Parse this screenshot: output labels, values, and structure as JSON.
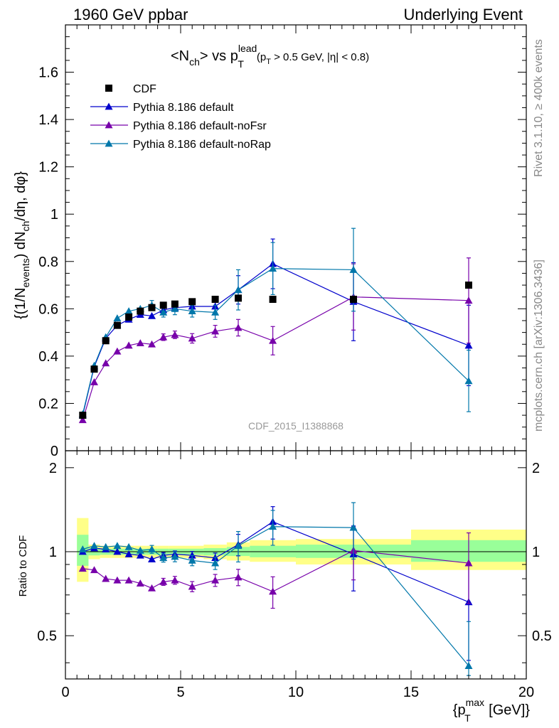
{
  "header": {
    "left": "1960 GeV ppbar",
    "right": "Underlying Event"
  },
  "side": {
    "rivet": "Rivet 3.1.10, ≥ 400k events",
    "mcplots": "mcplots.cern.ch [arXiv:1306.3436]"
  },
  "watermark": "CDF_2015_I1388868",
  "title": {
    "main": "<N",
    "main_sub": "ch",
    "mid": "> vs p",
    "mid_sup": "lead",
    "mid_sub": "T",
    "cut": "(p",
    "cut_sub": "T",
    "cut_rest": " > 0.5 GeV, |η| < 0.8)"
  },
  "axes": {
    "ylabel_main": "{(1/N",
    "ylabel_sub1": "events",
    "ylabel_mid": ") dN",
    "ylabel_sub2": "ch",
    "ylabel_end": "/dη, dφ}",
    "ylabel_ratio": "Ratio to CDF",
    "xlabel_pre": "{p",
    "xlabel_sup": "max",
    "xlabel_sub": "T",
    "xlabel_post": " [GeV]}"
  },
  "colors": {
    "cdf": "#000000",
    "default": "#0000cc",
    "noFsr": "#7700aa",
    "noRap": "#0077aa",
    "band_yellow": "#ffff88",
    "band_green": "#99ff99"
  },
  "chart_data": {
    "type": "scatter",
    "xlim": [
      0,
      20
    ],
    "ylim": [
      0,
      1.8
    ],
    "ratio_ylim": [
      0.35,
      2.3
    ],
    "ratio_log": true,
    "x_ticks": [
      0,
      5,
      10,
      15,
      20
    ],
    "y_ticks": [
      0.2,
      0.4,
      0.6,
      0.8,
      1,
      1.2,
      1.4,
      1.6
    ],
    "ratio_ticks": [
      0.5,
      1,
      2
    ],
    "legend": [
      "CDF",
      "Pythia 8.186 default",
      "Pythia 8.186 default-noFsr",
      "Pythia 8.186 default-noRap"
    ],
    "legend_position": "top-left",
    "series": [
      {
        "name": "CDF",
        "marker": "square",
        "x": [
          0.75,
          1.25,
          1.75,
          2.25,
          2.75,
          3.25,
          3.75,
          4.25,
          4.75,
          5.5,
          6.5,
          7.5,
          9.0,
          12.5,
          17.5
        ],
        "y": [
          0.15,
          0.345,
          0.465,
          0.53,
          0.565,
          0.59,
          0.605,
          0.615,
          0.62,
          0.63,
          0.64,
          0.645,
          0.64,
          0.64,
          0.7
        ]
      },
      {
        "name": "Pythia 8.186 default",
        "marker": "triangle",
        "x": [
          0.75,
          1.25,
          1.75,
          2.25,
          2.75,
          3.25,
          3.75,
          4.25,
          4.75,
          5.5,
          6.5,
          7.5,
          9.0,
          12.5,
          17.5
        ],
        "y": [
          0.15,
          0.355,
          0.475,
          0.53,
          0.555,
          0.575,
          0.57,
          0.595,
          0.605,
          0.61,
          0.61,
          0.68,
          0.79,
          0.63,
          0.445
        ],
        "yerr": [
          0.005,
          0.006,
          0.007,
          0.008,
          0.009,
          0.01,
          0.012,
          0.014,
          0.016,
          0.02,
          0.025,
          0.06,
          0.105,
          0.165,
          0.17
        ],
        "ratio": [
          1.0,
          1.03,
          1.02,
          1.0,
          0.98,
          0.97,
          0.94,
          0.97,
          0.98,
          0.97,
          0.95,
          1.06,
          1.28,
          0.98,
          0.66
        ]
      },
      {
        "name": "Pythia 8.186 default-noFsr",
        "marker": "triangle",
        "x": [
          0.75,
          1.25,
          1.75,
          2.25,
          2.75,
          3.25,
          3.75,
          4.25,
          4.75,
          5.5,
          6.5,
          7.5,
          9.0,
          12.5,
          17.5
        ],
        "y": [
          0.13,
          0.29,
          0.37,
          0.42,
          0.445,
          0.455,
          0.45,
          0.48,
          0.49,
          0.475,
          0.505,
          0.52,
          0.465,
          0.65,
          0.635
        ],
        "yerr": [
          0.005,
          0.006,
          0.007,
          0.008,
          0.009,
          0.01,
          0.012,
          0.014,
          0.016,
          0.02,
          0.025,
          0.035,
          0.06,
          0.14,
          0.18
        ],
        "ratio": [
          0.87,
          0.86,
          0.8,
          0.79,
          0.79,
          0.77,
          0.74,
          0.78,
          0.79,
          0.75,
          0.79,
          0.81,
          0.72,
          1.01,
          0.91
        ]
      },
      {
        "name": "Pythia 8.186 default-noRap",
        "marker": "triangle",
        "x": [
          0.75,
          1.25,
          1.75,
          2.25,
          2.75,
          3.25,
          3.75,
          4.25,
          4.75,
          5.5,
          6.5,
          7.5,
          9.0,
          12.5,
          17.5
        ],
        "y": [
          0.155,
          0.36,
          0.48,
          0.56,
          0.59,
          0.6,
          0.615,
          0.585,
          0.6,
          0.59,
          0.585,
          0.68,
          0.77,
          0.765,
          0.295
        ],
        "yerr": [
          0.005,
          0.006,
          0.007,
          0.008,
          0.009,
          0.01,
          0.02,
          0.02,
          0.025,
          0.025,
          0.03,
          0.085,
          0.11,
          0.175,
          0.13
        ],
        "ratio": [
          1.02,
          1.05,
          1.04,
          1.05,
          1.04,
          1.01,
          1.02,
          0.95,
          0.96,
          0.93,
          0.91,
          1.05,
          1.23,
          1.22,
          0.39
        ]
      }
    ],
    "ratio_bands": [
      {
        "x0": 0.5,
        "x1": 1.0,
        "yellow": [
          0.78,
          1.32
        ],
        "green": [
          0.89,
          1.15
        ]
      },
      {
        "x0": 1.0,
        "x1": 1.5,
        "yellow": [
          0.94,
          1.06
        ],
        "green": [
          0.97,
          1.03
        ]
      },
      {
        "x0": 1.5,
        "x1": 2.0,
        "yellow": [
          0.95,
          1.05
        ],
        "green": [
          0.975,
          1.025
        ]
      },
      {
        "x0": 2.0,
        "x1": 2.5,
        "yellow": [
          0.95,
          1.05
        ],
        "green": [
          0.975,
          1.025
        ]
      },
      {
        "x0": 2.5,
        "x1": 3.0,
        "yellow": [
          0.95,
          1.05
        ],
        "green": [
          0.975,
          1.025
        ]
      },
      {
        "x0": 3.0,
        "x1": 3.5,
        "yellow": [
          0.95,
          1.05
        ],
        "green": [
          0.975,
          1.025
        ]
      },
      {
        "x0": 3.5,
        "x1": 4.0,
        "yellow": [
          0.95,
          1.05
        ],
        "green": [
          0.975,
          1.025
        ]
      },
      {
        "x0": 4.0,
        "x1": 4.5,
        "yellow": [
          0.95,
          1.05
        ],
        "green": [
          0.975,
          1.025
        ]
      },
      {
        "x0": 4.5,
        "x1": 5.0,
        "yellow": [
          0.95,
          1.05
        ],
        "green": [
          0.975,
          1.025
        ]
      },
      {
        "x0": 5.0,
        "x1": 6.0,
        "yellow": [
          0.95,
          1.05
        ],
        "green": [
          0.975,
          1.025
        ]
      },
      {
        "x0": 6.0,
        "x1": 7.0,
        "yellow": [
          0.94,
          1.06
        ],
        "green": [
          0.97,
          1.03
        ]
      },
      {
        "x0": 7.0,
        "x1": 8.0,
        "yellow": [
          0.93,
          1.08
        ],
        "green": [
          0.965,
          1.04
        ]
      },
      {
        "x0": 8.0,
        "x1": 10.0,
        "yellow": [
          0.92,
          1.1
        ],
        "green": [
          0.955,
          1.05
        ]
      },
      {
        "x0": 10.0,
        "x1": 15.0,
        "yellow": [
          0.9,
          1.11
        ],
        "green": [
          0.95,
          1.06
        ]
      },
      {
        "x0": 15.0,
        "x1": 20.0,
        "yellow": [
          0.86,
          1.2
        ],
        "green": [
          0.92,
          1.1
        ]
      }
    ]
  }
}
